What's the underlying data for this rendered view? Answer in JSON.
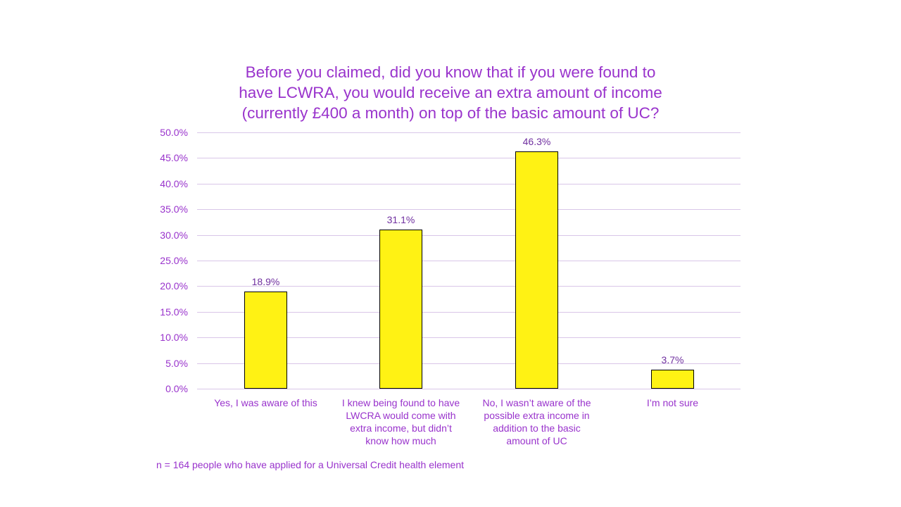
{
  "chart_data": {
    "type": "bar",
    "title": "Before you claimed, did you know that if you were found to have LCWRA, you would receive an extra amount of income (currently £400 a month) on top of the basic amount of UC?",
    "title_lines": [
      "Before you claimed, did you know that if you were found to",
      "have LCWRA, you would receive an extra amount of income",
      "(currently £400 a month) on top of the basic amount of UC?"
    ],
    "categories": [
      "Yes, I was aware of this",
      "I knew being found to have LWCRA would come with extra income, but didn’t know how much",
      "No, I wasn’t aware of the possible extra income in addition to the basic amount of UC",
      "I’m not sure"
    ],
    "category_lines": [
      [
        "Yes, I was aware of this"
      ],
      [
        "I knew being found to have",
        "LWCRA would come with",
        "extra income, but didn’t",
        "know how much"
      ],
      [
        "No, I wasn’t aware of the",
        "possible extra income in",
        "addition to the basic",
        "amount of UC"
      ],
      [
        "I’m not sure"
      ]
    ],
    "values": [
      18.9,
      31.1,
      46.3,
      3.7
    ],
    "data_labels": [
      "18.9%",
      "31.1%",
      "46.3%",
      "3.7%"
    ],
    "xlabel": "",
    "ylabel": "",
    "ylim": [
      0,
      50
    ],
    "yticks": [
      "0.0%",
      "5.0%",
      "10.0%",
      "15.0%",
      "20.0%",
      "25.0%",
      "30.0%",
      "35.0%",
      "40.0%",
      "45.0%",
      "50.0%"
    ],
    "grid": true,
    "legend": null,
    "footnote": "n = 164 people who have applied for a Universal Credit health element",
    "colors": {
      "bar": "#FFF214",
      "text": "#9933CC",
      "data_label": "#7030A0",
      "grid": "#D9C6E8"
    }
  }
}
